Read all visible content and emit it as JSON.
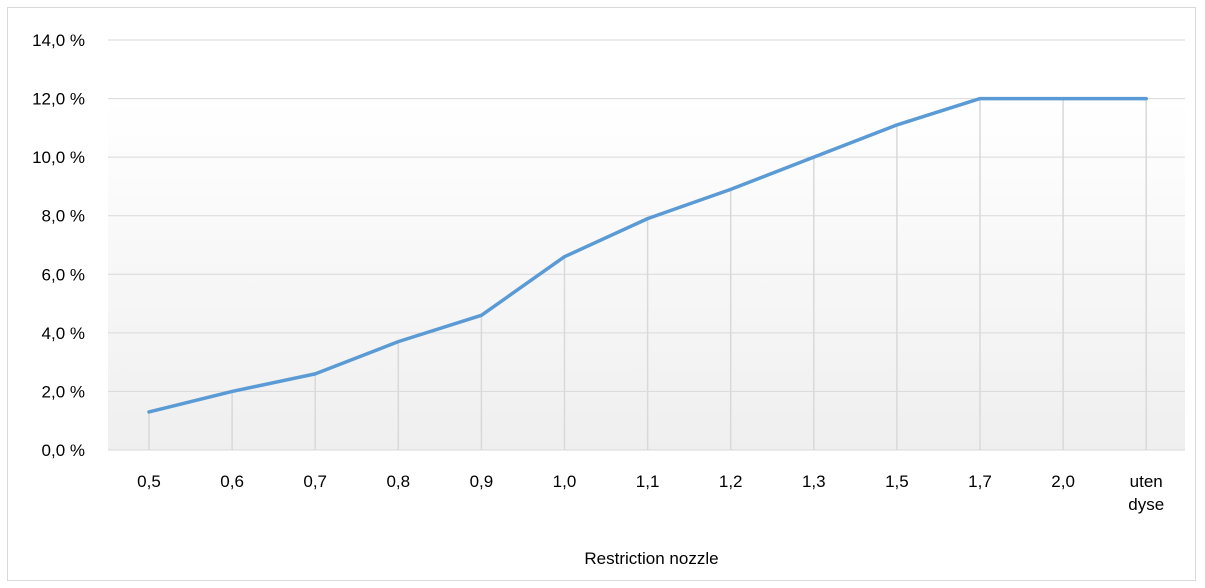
{
  "chart_data": {
    "type": "line",
    "title": "",
    "xlabel": "Restriction nozzle",
    "ylabel": "",
    "categories": [
      "0,5",
      "0,6",
      "0,7",
      "0,8",
      "0,9",
      "1,0",
      "1,1",
      "1,2",
      "1,3",
      "1,5",
      "1,7",
      "2,0",
      "uten\ndyse"
    ],
    "series": [
      {
        "values": [
          1.3,
          2.0,
          2.6,
          3.7,
          4.6,
          6.6,
          7.9,
          8.9,
          10.0,
          11.1,
          12.0,
          12.0,
          12.0
        ]
      }
    ],
    "ylim": [
      0,
      14
    ],
    "yticks": [
      0,
      2,
      4,
      6,
      8,
      10,
      12,
      14
    ],
    "ytick_labels": [
      "0,0 %",
      "2,0 %",
      "4,0 %",
      "6,0 %",
      "8,0 %",
      "10,0 %",
      "12,0 %",
      "14,0 %"
    ],
    "grid": true,
    "legend": "none",
    "colors": {
      "line": "#5b9bd5",
      "grid": "#d9d9d9",
      "plot_gradient_top": "#ffffff",
      "plot_gradient_bottom": "#efefef"
    }
  }
}
